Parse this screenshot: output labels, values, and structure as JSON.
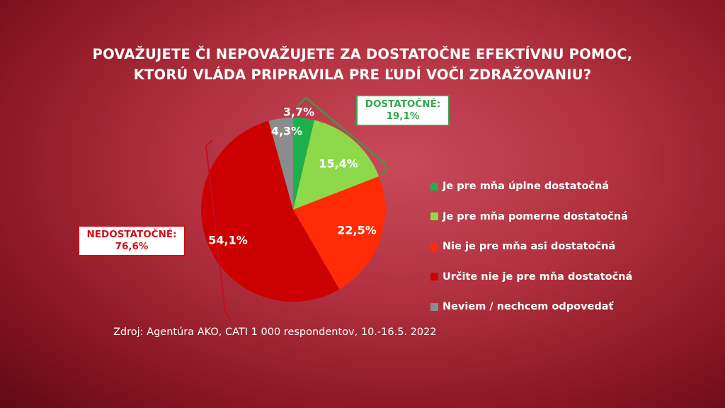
{
  "title_lines": [
    "POVAŽUJETE ČI NEPOVAŽUJETE ZA DOSTATOČNE EFEKTÍVNU POMOC,",
    "KTORÚ VLÁDA PRIPRAVILA PRE ĽUDÍ VOČI ZDRAŽOVANIU?"
  ],
  "groups": {
    "positive": {
      "label": "DOSTATOČNÉ:",
      "value": "19,1%",
      "color": "#2fa84f"
    },
    "negative": {
      "label": "NEDOSTATOČNÉ:",
      "value": "76,6%",
      "color": "#d0101a"
    }
  },
  "source": "Zdroj: Agentúra AKO, CATI 1 000 respondentov, 10.-16.5. 2022",
  "chart_data": {
    "type": "pie",
    "start": "top, clockwise",
    "slices": [
      {
        "name": "Je pre mňa úplne dostatočná",
        "value": 3.7,
        "label": "3,7%",
        "color": "#1cb14c"
      },
      {
        "name": "Je pre mňa pomerne dostatočná",
        "value": 15.4,
        "label": "15,4%",
        "color": "#8ed94a"
      },
      {
        "name": "Nie je pre mňa asi dostatočná",
        "value": 22.5,
        "label": "22,5%",
        "color": "#ff2b06"
      },
      {
        "name": "Určite nie je pre mňa dostatočná",
        "value": 54.1,
        "label": "54,1%",
        "color": "#cc0000"
      },
      {
        "name": "Neviem / nechcem odpovedať",
        "value": 4.3,
        "label": "4,3%",
        "color": "#8c8c8c"
      }
    ],
    "legend": "right"
  }
}
